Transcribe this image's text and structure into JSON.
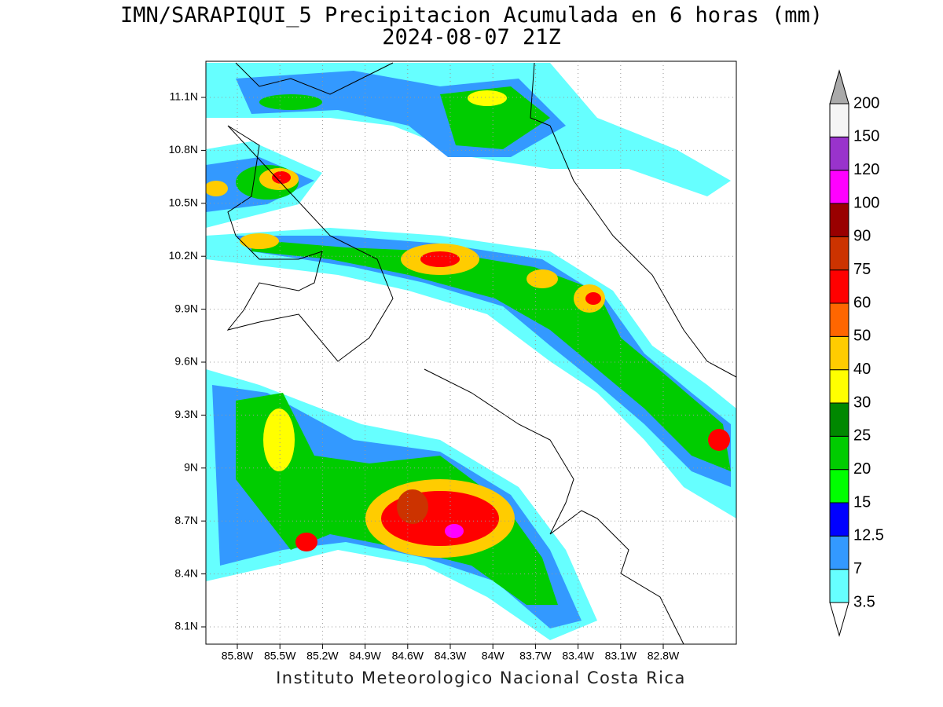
{
  "title": "IMN/SARAPIQUI_5 Precipitacion Acumulada en 6 horas (mm)",
  "subtitle": "2024-08-07 21Z",
  "latitude_labels": [
    "11.1N",
    "10.8N",
    "10.5N",
    "10.2N",
    "9.9N",
    "9.6N",
    "9.3N",
    "9N",
    "8.7N",
    "8.4N",
    "8.1N"
  ],
  "longitude_labels": [
    "85.8W",
    "85.5W",
    "85.2W",
    "84.9W",
    "84.6W",
    "84.3W",
    "84W",
    "83.7W",
    "83.4W",
    "83.1W",
    "82.8W"
  ],
  "colorbar": {
    "levels": [
      3.5,
      7,
      12.5,
      15,
      20,
      25,
      30,
      40,
      50,
      60,
      75,
      90,
      100,
      120,
      150,
      200
    ],
    "colors": [
      "#66ffff",
      "#3399ff",
      "#0000ff",
      "#00ff00",
      "#00cc00",
      "#008800",
      "#ffff00",
      "#ffcc00",
      "#ff6600",
      "#ff0000",
      "#cc3300",
      "#990000",
      "#ff00ff",
      "#9933cc",
      "#f5f5f5"
    ],
    "under_color": "#ffffff",
    "over_color": "#aaaaaa"
  },
  "credit": "Instituto Meteorologico Nacional Costa Rica"
}
